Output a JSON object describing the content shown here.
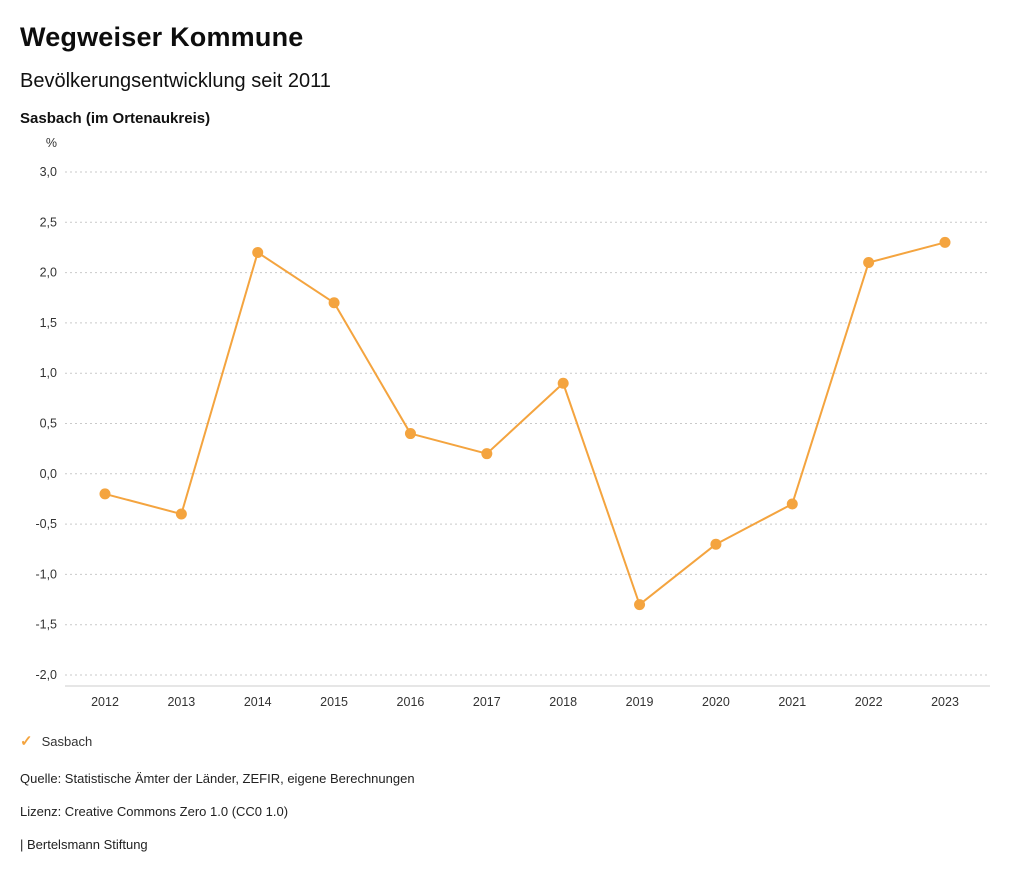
{
  "header": {
    "title": "Wegweiser Kommune",
    "subtitle": "Bevölkerungsentwicklung seit 2011",
    "region": "Sasbach (im Ortenaukreis)"
  },
  "legend": {
    "items": [
      {
        "label": "Sasbach",
        "color": "#F4A43F",
        "check_icon": "✓"
      }
    ]
  },
  "footer": {
    "source": "Quelle: Statistische Ämter der Länder, ZEFIR, eigene Berechnungen",
    "license": "Lizenz: Creative Commons Zero 1.0 (CC0 1.0)",
    "attribution": "| Bertelsmann Stiftung"
  },
  "colors": {
    "accent": "#F4A43F",
    "grid": "#c9c9c9",
    "axis": "#cccccc",
    "tick_text": "#333333"
  },
  "chart_data": {
    "type": "line",
    "title": "Bevölkerungsentwicklung seit 2011",
    "subtitle": "Sasbach (im Ortenaukreis)",
    "unit": "%",
    "categories": [
      "2012",
      "2013",
      "2014",
      "2015",
      "2016",
      "2017",
      "2018",
      "2019",
      "2020",
      "2021",
      "2022",
      "2023"
    ],
    "series": [
      {
        "name": "Sasbach",
        "color": "#F4A43F",
        "values": [
          -0.2,
          -0.4,
          2.2,
          1.7,
          0.4,
          0.2,
          0.9,
          -1.3,
          -0.7,
          -0.3,
          2.1,
          2.3
        ]
      }
    ],
    "ylim": [
      -2.0,
      3.0
    ],
    "ytick_step": 0.5,
    "ytick_format": "german-decimal-comma",
    "grid": "dotted-horizontal",
    "legend_position": "bottom"
  }
}
